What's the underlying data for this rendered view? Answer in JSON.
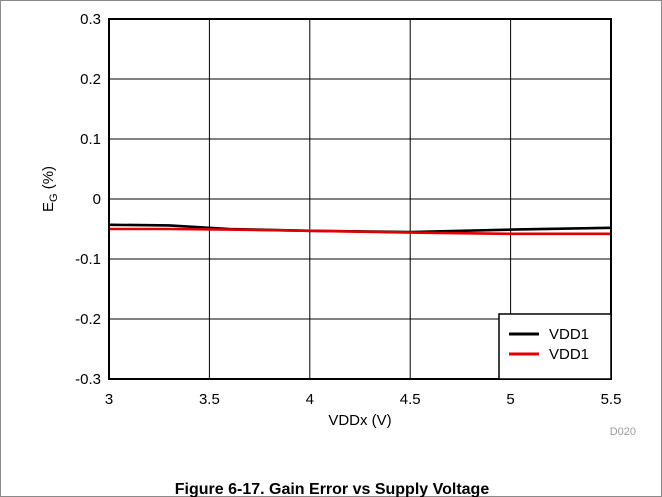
{
  "figure": {
    "caption": "Figure 6-17. Gain Error vs Supply Voltage",
    "id_label": "D020"
  },
  "chart_data": {
    "type": "line",
    "xlabel": "VDDx (V)",
    "ylabel_main": "E",
    "ylabel_sub": "G",
    "ylabel_suffix": " (%)",
    "xlim": [
      3,
      5.5
    ],
    "ylim": [
      -0.3,
      0.3
    ],
    "x_ticks": [
      3,
      3.5,
      4,
      4.5,
      5,
      5.5
    ],
    "y_ticks": [
      -0.3,
      -0.2,
      -0.1,
      0,
      0.1,
      0.2,
      0.3
    ],
    "x_tick_labels": [
      "3",
      "3.5",
      "4",
      "4.5",
      "5",
      "5.5"
    ],
    "y_tick_labels": [
      "-0.3",
      "-0.2",
      "-0.1",
      "0",
      "0.1",
      "0.2",
      "0.3"
    ],
    "grid": true,
    "legend_position": "bottom-right",
    "series": [
      {
        "name": "VDD1",
        "color": "#000000",
        "x": [
          3,
          3.3,
          3.6,
          4,
          4.5,
          5,
          5.5
        ],
        "y": [
          -0.043,
          -0.044,
          -0.05,
          -0.053,
          -0.055,
          -0.051,
          -0.048
        ]
      },
      {
        "name": "VDD1",
        "color": "#e00000",
        "x": [
          3,
          3.3,
          3.6,
          4,
          4.5,
          5,
          5.5
        ],
        "y": [
          -0.05,
          -0.05,
          -0.051,
          -0.053,
          -0.056,
          -0.058,
          -0.058
        ]
      }
    ]
  }
}
